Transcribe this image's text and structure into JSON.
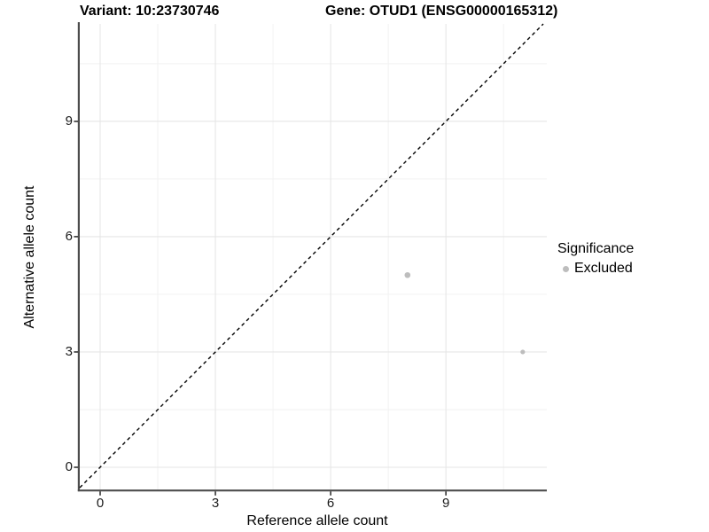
{
  "figure": {
    "title_variant": "Variant: 10:23730746",
    "title_gene": "Gene: OTUD1 (ENSG00000165312)"
  },
  "chart_data": {
    "type": "scatter",
    "title": "Variant: 10:23730746 / Gene: OTUD1 (ENSG00000165312)",
    "xlabel": "Reference allele count",
    "ylabel": "Alternative allele count",
    "xlim": [
      -0.55,
      11.6
    ],
    "ylim": [
      -0.6,
      11.5
    ],
    "xticks": [
      0,
      3,
      6,
      9
    ],
    "yticks": [
      0,
      3,
      6,
      9
    ],
    "x_minor_ticks": [
      1.5,
      4.5,
      7.5,
      10.5
    ],
    "y_minor_ticks": [
      1.5,
      4.5,
      7.5,
      10.5
    ],
    "grid": "major and minor, light gray, white panel background",
    "aspect": "fixed 1:1",
    "series": [
      {
        "name": "Excluded",
        "color": "#bdbdbd",
        "points": [
          {
            "x": 8,
            "y": 5,
            "size": 3.3
          },
          {
            "x": 11,
            "y": 3,
            "size": 2.6
          }
        ]
      }
    ],
    "reference_line": {
      "kind": "identity",
      "slope": 1,
      "intercept": 0,
      "style": "dashed",
      "color": "#000000"
    },
    "legend": {
      "title": "Significance",
      "position": "right",
      "items": [
        {
          "label": "Excluded",
          "color": "#bdbdbd"
        }
      ]
    }
  },
  "colors": {
    "background": "#ffffff",
    "axis_line": "#4d4d4d",
    "tick_mark": "#333333",
    "tick_label": "#1a1a1a",
    "grid_major": "#e6e6e6",
    "grid_minor": "#f2f2f2"
  }
}
